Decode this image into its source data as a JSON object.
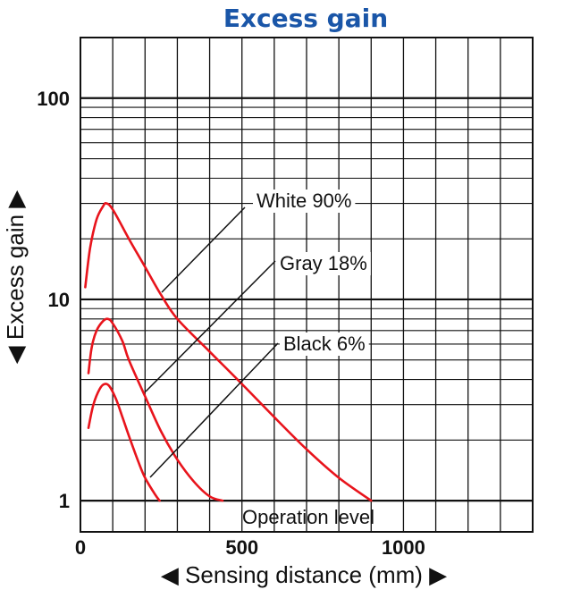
{
  "chart_data": {
    "type": "line",
    "title": "Excess gain",
    "xlabel": "◀ Sensing distance (mm) ▶",
    "ylabel": "◀ Excess gain ▶",
    "x_scale": "linear",
    "y_scale": "log",
    "xlim": [
      0,
      1400
    ],
    "ylim": [
      0.7,
      200
    ],
    "x_ticks": [
      "0",
      "500",
      "1000"
    ],
    "x_tick_values": [
      0,
      500,
      1000
    ],
    "y_ticks": [
      "1",
      "10",
      "100"
    ],
    "y_tick_values": [
      1,
      10,
      100
    ],
    "grid": true,
    "annotation": "Operation level",
    "series": [
      {
        "name": "White 90%",
        "color": "#e8141c",
        "x": [
          15,
          30,
          50,
          70,
          80,
          100,
          150,
          200,
          250,
          300,
          400,
          500,
          600,
          700,
          800,
          900
        ],
        "y": [
          11.5,
          18,
          25,
          29,
          30,
          28,
          20,
          14.5,
          10.5,
          8,
          5.5,
          3.8,
          2.6,
          1.8,
          1.3,
          1.0
        ]
      },
      {
        "name": "Gray 18%",
        "color": "#e8141c",
        "x": [
          25,
          35,
          50,
          70,
          85,
          100,
          130,
          150,
          200,
          250,
          300,
          350,
          400,
          440
        ],
        "y": [
          4.3,
          5.8,
          7.0,
          7.8,
          8.0,
          7.6,
          6.2,
          5.0,
          3.3,
          2.2,
          1.6,
          1.25,
          1.05,
          1.0
        ]
      },
      {
        "name": "Black 6%",
        "color": "#e8141c",
        "x": [
          25,
          40,
          60,
          75,
          90,
          110,
          130,
          150,
          180,
          200,
          230,
          245
        ],
        "y": [
          2.3,
          3.0,
          3.6,
          3.8,
          3.7,
          3.2,
          2.6,
          2.1,
          1.55,
          1.3,
          1.08,
          1.0
        ]
      }
    ],
    "labels": [
      {
        "text": "White 90%"
      },
      {
        "text": "Gray 18%"
      },
      {
        "text": "Black 6%"
      }
    ]
  }
}
